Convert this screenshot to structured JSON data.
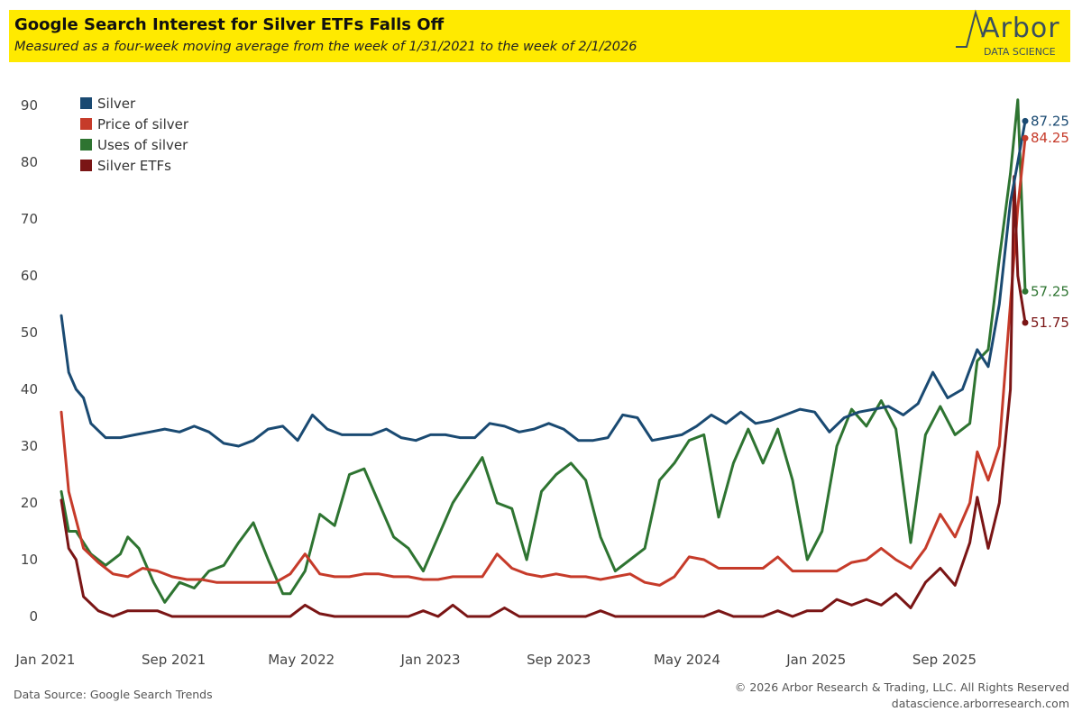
{
  "header": {
    "title": "Google Search Interest for Silver ETFs Falls Off",
    "subtitle": "Measured as a four-week moving average from the week of 1/31/2021 to the week of 2/1/2026",
    "logo_word": "Arbor",
    "logo_sub": "DATA SCIENCE",
    "background_color": "#ffea00"
  },
  "footer": {
    "source": "Data Source: Google Search Trends",
    "copyright_line1": "© 2026 Arbor Research & Trading, LLC. All Rights Reserved",
    "copyright_line2": "datascience.arborresearch.com"
  },
  "chart_data": {
    "type": "line",
    "title": "Google Search Interest for Silver ETFs Falls Off",
    "xlabel": "",
    "ylabel": "",
    "ylim": [
      0,
      90
    ],
    "yticks": [
      0,
      10,
      20,
      30,
      40,
      50,
      60,
      70,
      80,
      90
    ],
    "xlim": [
      "2021-01-31",
      "2026-02-01"
    ],
    "x_tick_labels": [
      {
        "label": "Jan 2021",
        "date": "2021-01-01"
      },
      {
        "label": "Sep 2021",
        "date": "2021-09-01"
      },
      {
        "label": "May 2022",
        "date": "2022-05-01"
      },
      {
        "label": "Jan 2023",
        "date": "2023-01-01"
      },
      {
        "label": "Sep 2023",
        "date": "2023-09-01"
      },
      {
        "label": "May 2024",
        "date": "2024-05-01"
      },
      {
        "label": "Jan 2025",
        "date": "2025-01-01"
      },
      {
        "label": "Sep 2025",
        "date": "2025-09-01"
      }
    ],
    "grid": false,
    "legend_position": "top-left",
    "series": [
      {
        "name": "Silver",
        "color": "#1a4a72",
        "end_label": "87.25",
        "points": [
          [
            "2021-01-31",
            53
          ],
          [
            "2021-02-14",
            43
          ],
          [
            "2021-02-28",
            40
          ],
          [
            "2021-03-14",
            38.5
          ],
          [
            "2021-03-28",
            34
          ],
          [
            "2021-04-25",
            31.5
          ],
          [
            "2021-05-23",
            31.5
          ],
          [
            "2021-06-20",
            32
          ],
          [
            "2021-07-18",
            32.5
          ],
          [
            "2021-08-15",
            33
          ],
          [
            "2021-09-12",
            32.5
          ],
          [
            "2021-10-10",
            33.5
          ],
          [
            "2021-11-07",
            32.5
          ],
          [
            "2021-12-05",
            30.5
          ],
          [
            "2022-01-02",
            30
          ],
          [
            "2022-01-30",
            31
          ],
          [
            "2022-02-27",
            33
          ],
          [
            "2022-03-27",
            33.5
          ],
          [
            "2022-04-24",
            31
          ],
          [
            "2022-05-22",
            35.5
          ],
          [
            "2022-06-19",
            33
          ],
          [
            "2022-07-17",
            32
          ],
          [
            "2022-08-14",
            32
          ],
          [
            "2022-09-11",
            32
          ],
          [
            "2022-10-09",
            33
          ],
          [
            "2022-11-06",
            31.5
          ],
          [
            "2022-12-04",
            31
          ],
          [
            "2023-01-01",
            32
          ],
          [
            "2023-01-29",
            32
          ],
          [
            "2023-02-26",
            31.5
          ],
          [
            "2023-03-26",
            31.5
          ],
          [
            "2023-04-23",
            34
          ],
          [
            "2023-05-21",
            33.5
          ],
          [
            "2023-06-18",
            32.5
          ],
          [
            "2023-07-16",
            33
          ],
          [
            "2023-08-13",
            34
          ],
          [
            "2023-09-10",
            33
          ],
          [
            "2023-10-08",
            31
          ],
          [
            "2023-11-05",
            31
          ],
          [
            "2023-12-03",
            31.5
          ],
          [
            "2023-12-31",
            35.5
          ],
          [
            "2024-01-28",
            35
          ],
          [
            "2024-02-25",
            31
          ],
          [
            "2024-03-24",
            31.5
          ],
          [
            "2024-04-21",
            32
          ],
          [
            "2024-05-19",
            33.5
          ],
          [
            "2024-06-16",
            35.5
          ],
          [
            "2024-07-14",
            34
          ],
          [
            "2024-08-11",
            36
          ],
          [
            "2024-09-08",
            34
          ],
          [
            "2024-10-06",
            34.5
          ],
          [
            "2024-11-03",
            35.5
          ],
          [
            "2024-12-01",
            36.5
          ],
          [
            "2024-12-29",
            36
          ],
          [
            "2025-01-26",
            32.5
          ],
          [
            "2025-02-23",
            35
          ],
          [
            "2025-03-23",
            36
          ],
          [
            "2025-04-20",
            36.5
          ],
          [
            "2025-05-18",
            37
          ],
          [
            "2025-06-15",
            35.5
          ],
          [
            "2025-07-13",
            37.5
          ],
          [
            "2025-08-10",
            43
          ],
          [
            "2025-09-07",
            38.5
          ],
          [
            "2025-10-05",
            40
          ],
          [
            "2025-11-02",
            47
          ],
          [
            "2025-11-23",
            44
          ],
          [
            "2025-12-14",
            55
          ],
          [
            "2026-01-04",
            73
          ],
          [
            "2026-01-18",
            80
          ],
          [
            "2026-02-01",
            87.25
          ]
        ]
      },
      {
        "name": "Price of silver",
        "color": "#c63b2a",
        "end_label": "84.25",
        "points": [
          [
            "2021-01-31",
            36
          ],
          [
            "2021-02-14",
            22
          ],
          [
            "2021-02-28",
            17
          ],
          [
            "2021-03-14",
            12
          ],
          [
            "2021-04-11",
            9.5
          ],
          [
            "2021-05-09",
            7.5
          ],
          [
            "2021-06-06",
            7
          ],
          [
            "2021-07-04",
            8.5
          ],
          [
            "2021-08-01",
            8
          ],
          [
            "2021-08-29",
            7
          ],
          [
            "2021-09-26",
            6.5
          ],
          [
            "2021-10-24",
            6.5
          ],
          [
            "2021-11-21",
            6
          ],
          [
            "2021-12-19",
            6
          ],
          [
            "2022-01-16",
            6
          ],
          [
            "2022-02-13",
            6
          ],
          [
            "2022-03-13",
            6
          ],
          [
            "2022-04-10",
            7.5
          ],
          [
            "2022-05-08",
            11
          ],
          [
            "2022-06-05",
            7.5
          ],
          [
            "2022-07-03",
            7
          ],
          [
            "2022-07-31",
            7
          ],
          [
            "2022-08-28",
            7.5
          ],
          [
            "2022-09-25",
            7.5
          ],
          [
            "2022-10-23",
            7
          ],
          [
            "2022-11-20",
            7
          ],
          [
            "2022-12-18",
            6.5
          ],
          [
            "2023-01-15",
            6.5
          ],
          [
            "2023-02-12",
            7
          ],
          [
            "2023-03-12",
            7
          ],
          [
            "2023-04-09",
            7
          ],
          [
            "2023-05-07",
            11
          ],
          [
            "2023-06-04",
            8.5
          ],
          [
            "2023-07-02",
            7.5
          ],
          [
            "2023-07-30",
            7
          ],
          [
            "2023-08-27",
            7.5
          ],
          [
            "2023-09-24",
            7
          ],
          [
            "2023-10-22",
            7
          ],
          [
            "2023-11-19",
            6.5
          ],
          [
            "2023-12-17",
            7
          ],
          [
            "2024-01-14",
            7.5
          ],
          [
            "2024-02-11",
            6
          ],
          [
            "2024-03-10",
            5.5
          ],
          [
            "2024-04-07",
            7
          ],
          [
            "2024-05-05",
            10.5
          ],
          [
            "2024-06-02",
            10
          ],
          [
            "2024-06-30",
            8.5
          ],
          [
            "2024-07-28",
            8.5
          ],
          [
            "2024-08-25",
            8.5
          ],
          [
            "2024-09-22",
            8.5
          ],
          [
            "2024-10-20",
            10.5
          ],
          [
            "2024-11-17",
            8
          ],
          [
            "2024-12-15",
            8
          ],
          [
            "2025-01-12",
            8
          ],
          [
            "2025-02-09",
            8
          ],
          [
            "2025-03-09",
            9.5
          ],
          [
            "2025-04-06",
            10
          ],
          [
            "2025-05-04",
            12
          ],
          [
            "2025-06-01",
            10
          ],
          [
            "2025-06-29",
            8.5
          ],
          [
            "2025-07-27",
            12
          ],
          [
            "2025-08-24",
            18
          ],
          [
            "2025-09-21",
            14
          ],
          [
            "2025-10-19",
            20
          ],
          [
            "2025-11-02",
            29
          ],
          [
            "2025-11-23",
            24
          ],
          [
            "2025-12-14",
            30
          ],
          [
            "2026-01-04",
            55
          ],
          [
            "2026-01-18",
            72
          ],
          [
            "2026-02-01",
            84.25
          ]
        ]
      },
      {
        "name": "Uses of silver",
        "color": "#2e7431",
        "end_label": "57.25",
        "points": [
          [
            "2021-01-31",
            22
          ],
          [
            "2021-02-14",
            15
          ],
          [
            "2021-02-28",
            15
          ],
          [
            "2021-03-28",
            11
          ],
          [
            "2021-04-25",
            9
          ],
          [
            "2021-05-23",
            11
          ],
          [
            "2021-06-06",
            14
          ],
          [
            "2021-06-27",
            12
          ],
          [
            "2021-07-25",
            6
          ],
          [
            "2021-08-15",
            2.5
          ],
          [
            "2021-09-12",
            6
          ],
          [
            "2021-10-10",
            5
          ],
          [
            "2021-11-07",
            8
          ],
          [
            "2021-12-05",
            9
          ],
          [
            "2022-01-02",
            13
          ],
          [
            "2022-01-30",
            16.5
          ],
          [
            "2022-02-27",
            10
          ],
          [
            "2022-03-27",
            4
          ],
          [
            "2022-04-10",
            4
          ],
          [
            "2022-05-08",
            8
          ],
          [
            "2022-06-05",
            18
          ],
          [
            "2022-07-03",
            16
          ],
          [
            "2022-07-31",
            25
          ],
          [
            "2022-08-28",
            26
          ],
          [
            "2022-09-25",
            20
          ],
          [
            "2022-10-23",
            14
          ],
          [
            "2022-11-20",
            12
          ],
          [
            "2022-12-18",
            8
          ],
          [
            "2023-01-15",
            14
          ],
          [
            "2023-02-12",
            20
          ],
          [
            "2023-03-12",
            24
          ],
          [
            "2023-04-09",
            28
          ],
          [
            "2023-05-07",
            20
          ],
          [
            "2023-06-04",
            19
          ],
          [
            "2023-07-02",
            10
          ],
          [
            "2023-07-30",
            22
          ],
          [
            "2023-08-27",
            25
          ],
          [
            "2023-09-24",
            27
          ],
          [
            "2023-10-22",
            24
          ],
          [
            "2023-11-19",
            14
          ],
          [
            "2023-12-17",
            8
          ],
          [
            "2024-01-14",
            10
          ],
          [
            "2024-02-11",
            12
          ],
          [
            "2024-03-10",
            24
          ],
          [
            "2024-04-07",
            27
          ],
          [
            "2024-05-05",
            31
          ],
          [
            "2024-06-02",
            32
          ],
          [
            "2024-06-30",
            17.5
          ],
          [
            "2024-07-28",
            27
          ],
          [
            "2024-08-25",
            33
          ],
          [
            "2024-09-22",
            27
          ],
          [
            "2024-10-20",
            33
          ],
          [
            "2024-11-17",
            24
          ],
          [
            "2024-12-15",
            10
          ],
          [
            "2025-01-12",
            15
          ],
          [
            "2025-02-09",
            30
          ],
          [
            "2025-03-09",
            36.5
          ],
          [
            "2025-04-06",
            33.5
          ],
          [
            "2025-05-04",
            38
          ],
          [
            "2025-06-01",
            33
          ],
          [
            "2025-06-29",
            13
          ],
          [
            "2025-07-27",
            32
          ],
          [
            "2025-08-24",
            37
          ],
          [
            "2025-09-21",
            32
          ],
          [
            "2025-10-19",
            34
          ],
          [
            "2025-11-02",
            45
          ],
          [
            "2025-11-23",
            47
          ],
          [
            "2025-12-14",
            63
          ],
          [
            "2026-01-04",
            78
          ],
          [
            "2026-01-18",
            91
          ],
          [
            "2026-02-01",
            57.25
          ]
        ]
      },
      {
        "name": "Silver ETFs",
        "color": "#7a1515",
        "end_label": "51.75",
        "points": [
          [
            "2021-01-31",
            20.5
          ],
          [
            "2021-02-14",
            12
          ],
          [
            "2021-02-28",
            10
          ],
          [
            "2021-03-14",
            3.5
          ],
          [
            "2021-04-11",
            1
          ],
          [
            "2021-05-09",
            0
          ],
          [
            "2021-06-06",
            1
          ],
          [
            "2021-07-04",
            1
          ],
          [
            "2021-08-01",
            1
          ],
          [
            "2021-08-29",
            0
          ],
          [
            "2022-04-10",
            0
          ],
          [
            "2022-05-08",
            2
          ],
          [
            "2022-06-05",
            0.5
          ],
          [
            "2022-07-03",
            0
          ],
          [
            "2022-11-20",
            0
          ],
          [
            "2022-12-18",
            1
          ],
          [
            "2023-01-15",
            0
          ],
          [
            "2023-02-12",
            2
          ],
          [
            "2023-03-12",
            0
          ],
          [
            "2023-04-23",
            0
          ],
          [
            "2023-05-21",
            1.5
          ],
          [
            "2023-06-18",
            0
          ],
          [
            "2023-10-22",
            0
          ],
          [
            "2023-11-19",
            1
          ],
          [
            "2023-12-17",
            0
          ],
          [
            "2024-06-02",
            0
          ],
          [
            "2024-06-30",
            1
          ],
          [
            "2024-07-28",
            0
          ],
          [
            "2024-09-22",
            0
          ],
          [
            "2024-10-20",
            1
          ],
          [
            "2024-11-17",
            0
          ],
          [
            "2024-12-15",
            1
          ],
          [
            "2025-01-12",
            1
          ],
          [
            "2025-02-09",
            3
          ],
          [
            "2025-03-09",
            2
          ],
          [
            "2025-04-06",
            3
          ],
          [
            "2025-05-04",
            2
          ],
          [
            "2025-06-01",
            4
          ],
          [
            "2025-06-29",
            1.5
          ],
          [
            "2025-07-27",
            6
          ],
          [
            "2025-08-24",
            8.5
          ],
          [
            "2025-09-21",
            5.5
          ],
          [
            "2025-10-19",
            13
          ],
          [
            "2025-11-02",
            21
          ],
          [
            "2025-11-23",
            12
          ],
          [
            "2025-12-14",
            20
          ],
          [
            "2026-01-04",
            40
          ],
          [
            "2026-01-11",
            77.5
          ],
          [
            "2026-01-18",
            60
          ],
          [
            "2026-02-01",
            51.75
          ]
        ]
      }
    ]
  }
}
